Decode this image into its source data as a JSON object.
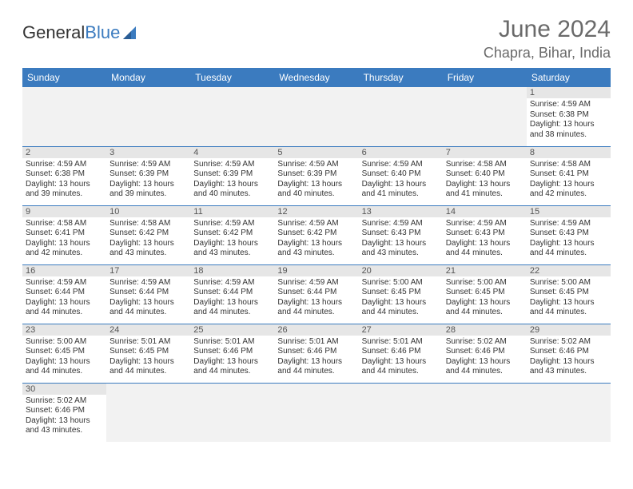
{
  "logo": {
    "word1": "General",
    "word2": "Blue"
  },
  "title": "June 2024",
  "location": "Chapra, Bihar, India",
  "colors": {
    "header_bg": "#3b7bbf",
    "header_text": "#ffffff",
    "grid_border": "#3b7bbf",
    "daynum_bg": "#e6e6e6",
    "empty_bg": "#f2f2f2",
    "title_color": "#6a6a6a",
    "body_text": "#333333"
  },
  "weekdays": [
    "Sunday",
    "Monday",
    "Tuesday",
    "Wednesday",
    "Thursday",
    "Friday",
    "Saturday"
  ],
  "weeks": [
    [
      null,
      null,
      null,
      null,
      null,
      null,
      {
        "n": "1",
        "sr": "Sunrise: 4:59 AM",
        "ss": "Sunset: 6:38 PM",
        "d1": "Daylight: 13 hours",
        "d2": "and 38 minutes."
      }
    ],
    [
      {
        "n": "2",
        "sr": "Sunrise: 4:59 AM",
        "ss": "Sunset: 6:38 PM",
        "d1": "Daylight: 13 hours",
        "d2": "and 39 minutes."
      },
      {
        "n": "3",
        "sr": "Sunrise: 4:59 AM",
        "ss": "Sunset: 6:39 PM",
        "d1": "Daylight: 13 hours",
        "d2": "and 39 minutes."
      },
      {
        "n": "4",
        "sr": "Sunrise: 4:59 AM",
        "ss": "Sunset: 6:39 PM",
        "d1": "Daylight: 13 hours",
        "d2": "and 40 minutes."
      },
      {
        "n": "5",
        "sr": "Sunrise: 4:59 AM",
        "ss": "Sunset: 6:39 PM",
        "d1": "Daylight: 13 hours",
        "d2": "and 40 minutes."
      },
      {
        "n": "6",
        "sr": "Sunrise: 4:59 AM",
        "ss": "Sunset: 6:40 PM",
        "d1": "Daylight: 13 hours",
        "d2": "and 41 minutes."
      },
      {
        "n": "7",
        "sr": "Sunrise: 4:58 AM",
        "ss": "Sunset: 6:40 PM",
        "d1": "Daylight: 13 hours",
        "d2": "and 41 minutes."
      },
      {
        "n": "8",
        "sr": "Sunrise: 4:58 AM",
        "ss": "Sunset: 6:41 PM",
        "d1": "Daylight: 13 hours",
        "d2": "and 42 minutes."
      }
    ],
    [
      {
        "n": "9",
        "sr": "Sunrise: 4:58 AM",
        "ss": "Sunset: 6:41 PM",
        "d1": "Daylight: 13 hours",
        "d2": "and 42 minutes."
      },
      {
        "n": "10",
        "sr": "Sunrise: 4:58 AM",
        "ss": "Sunset: 6:42 PM",
        "d1": "Daylight: 13 hours",
        "d2": "and 43 minutes."
      },
      {
        "n": "11",
        "sr": "Sunrise: 4:59 AM",
        "ss": "Sunset: 6:42 PM",
        "d1": "Daylight: 13 hours",
        "d2": "and 43 minutes."
      },
      {
        "n": "12",
        "sr": "Sunrise: 4:59 AM",
        "ss": "Sunset: 6:42 PM",
        "d1": "Daylight: 13 hours",
        "d2": "and 43 minutes."
      },
      {
        "n": "13",
        "sr": "Sunrise: 4:59 AM",
        "ss": "Sunset: 6:43 PM",
        "d1": "Daylight: 13 hours",
        "d2": "and 43 minutes."
      },
      {
        "n": "14",
        "sr": "Sunrise: 4:59 AM",
        "ss": "Sunset: 6:43 PM",
        "d1": "Daylight: 13 hours",
        "d2": "and 44 minutes."
      },
      {
        "n": "15",
        "sr": "Sunrise: 4:59 AM",
        "ss": "Sunset: 6:43 PM",
        "d1": "Daylight: 13 hours",
        "d2": "and 44 minutes."
      }
    ],
    [
      {
        "n": "16",
        "sr": "Sunrise: 4:59 AM",
        "ss": "Sunset: 6:44 PM",
        "d1": "Daylight: 13 hours",
        "d2": "and 44 minutes."
      },
      {
        "n": "17",
        "sr": "Sunrise: 4:59 AM",
        "ss": "Sunset: 6:44 PM",
        "d1": "Daylight: 13 hours",
        "d2": "and 44 minutes."
      },
      {
        "n": "18",
        "sr": "Sunrise: 4:59 AM",
        "ss": "Sunset: 6:44 PM",
        "d1": "Daylight: 13 hours",
        "d2": "and 44 minutes."
      },
      {
        "n": "19",
        "sr": "Sunrise: 4:59 AM",
        "ss": "Sunset: 6:44 PM",
        "d1": "Daylight: 13 hours",
        "d2": "and 44 minutes."
      },
      {
        "n": "20",
        "sr": "Sunrise: 5:00 AM",
        "ss": "Sunset: 6:45 PM",
        "d1": "Daylight: 13 hours",
        "d2": "and 44 minutes."
      },
      {
        "n": "21",
        "sr": "Sunrise: 5:00 AM",
        "ss": "Sunset: 6:45 PM",
        "d1": "Daylight: 13 hours",
        "d2": "and 44 minutes."
      },
      {
        "n": "22",
        "sr": "Sunrise: 5:00 AM",
        "ss": "Sunset: 6:45 PM",
        "d1": "Daylight: 13 hours",
        "d2": "and 44 minutes."
      }
    ],
    [
      {
        "n": "23",
        "sr": "Sunrise: 5:00 AM",
        "ss": "Sunset: 6:45 PM",
        "d1": "Daylight: 13 hours",
        "d2": "and 44 minutes."
      },
      {
        "n": "24",
        "sr": "Sunrise: 5:01 AM",
        "ss": "Sunset: 6:45 PM",
        "d1": "Daylight: 13 hours",
        "d2": "and 44 minutes."
      },
      {
        "n": "25",
        "sr": "Sunrise: 5:01 AM",
        "ss": "Sunset: 6:46 PM",
        "d1": "Daylight: 13 hours",
        "d2": "and 44 minutes."
      },
      {
        "n": "26",
        "sr": "Sunrise: 5:01 AM",
        "ss": "Sunset: 6:46 PM",
        "d1": "Daylight: 13 hours",
        "d2": "and 44 minutes."
      },
      {
        "n": "27",
        "sr": "Sunrise: 5:01 AM",
        "ss": "Sunset: 6:46 PM",
        "d1": "Daylight: 13 hours",
        "d2": "and 44 minutes."
      },
      {
        "n": "28",
        "sr": "Sunrise: 5:02 AM",
        "ss": "Sunset: 6:46 PM",
        "d1": "Daylight: 13 hours",
        "d2": "and 44 minutes."
      },
      {
        "n": "29",
        "sr": "Sunrise: 5:02 AM",
        "ss": "Sunset: 6:46 PM",
        "d1": "Daylight: 13 hours",
        "d2": "and 43 minutes."
      }
    ],
    [
      {
        "n": "30",
        "sr": "Sunrise: 5:02 AM",
        "ss": "Sunset: 6:46 PM",
        "d1": "Daylight: 13 hours",
        "d2": "and 43 minutes."
      },
      null,
      null,
      null,
      null,
      null,
      null
    ]
  ]
}
